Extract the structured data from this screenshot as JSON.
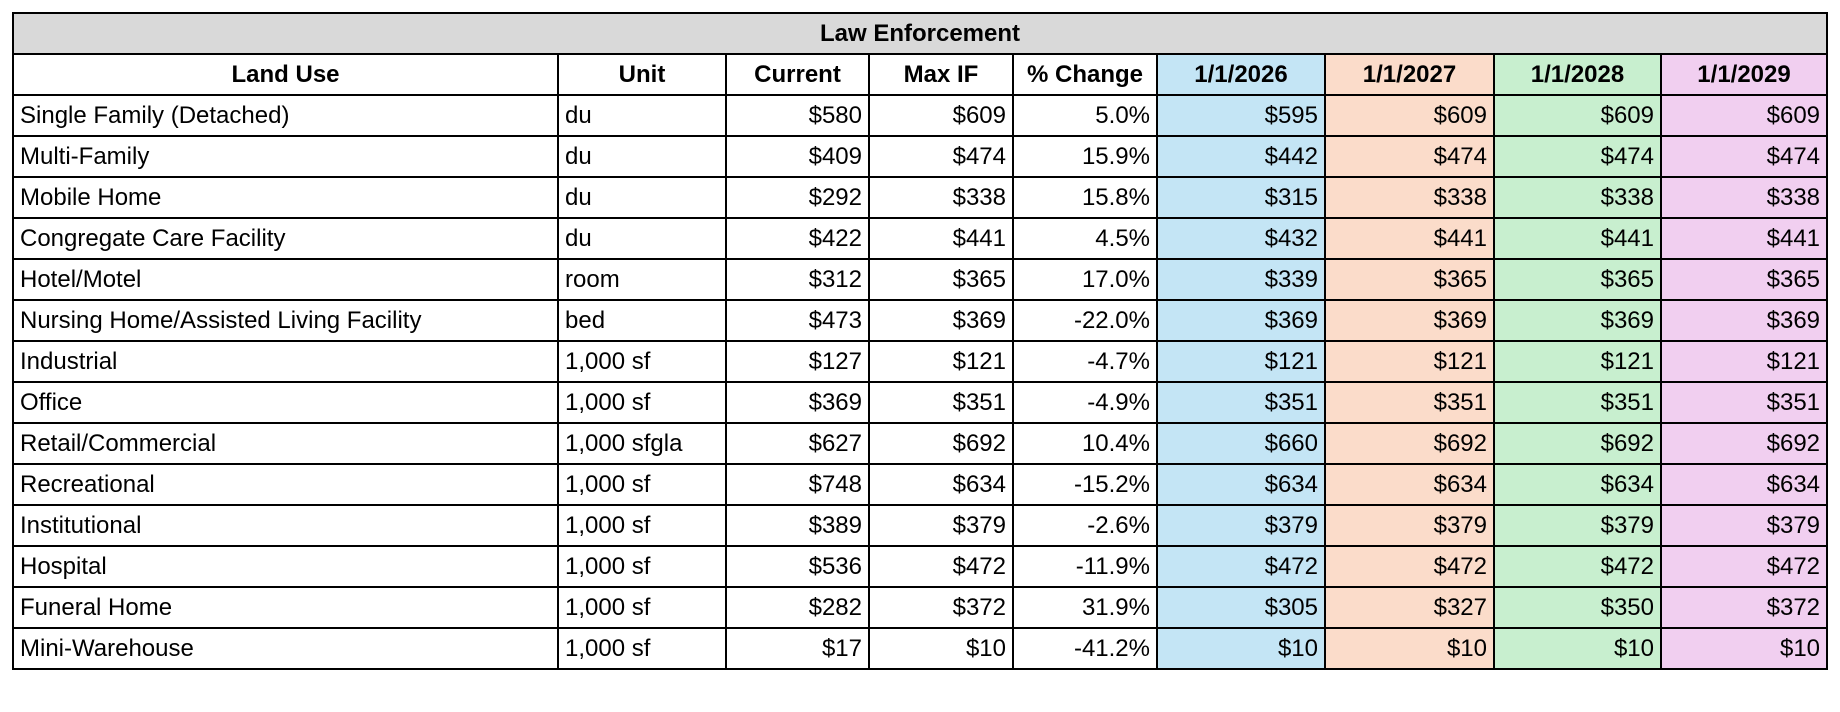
{
  "title": "Law Enforcement",
  "table": {
    "header": [
      "Land Use",
      "Unit",
      "Current",
      "Max IF",
      "% Change",
      "1/1/2026",
      "1/1/2027",
      "1/1/2028",
      "1/1/2029"
    ],
    "rows": [
      [
        "Single Family (Detached)",
        "du",
        "$580",
        "$609",
        "5.0%",
        "$595",
        "$609",
        "$609",
        "$609"
      ],
      [
        "Multi-Family",
        "du",
        "$409",
        "$474",
        "15.9%",
        "$442",
        "$474",
        "$474",
        "$474"
      ],
      [
        "Mobile Home",
        "du",
        "$292",
        "$338",
        "15.8%",
        "$315",
        "$338",
        "$338",
        "$338"
      ],
      [
        "Congregate Care Facility",
        "du",
        "$422",
        "$441",
        "4.5%",
        "$432",
        "$441",
        "$441",
        "$441"
      ],
      [
        "Hotel/Motel",
        "room",
        "$312",
        "$365",
        "17.0%",
        "$339",
        "$365",
        "$365",
        "$365"
      ],
      [
        "Nursing Home/Assisted Living Facility",
        "bed",
        "$473",
        "$369",
        "-22.0%",
        "$369",
        "$369",
        "$369",
        "$369"
      ],
      [
        "Industrial",
        "1,000 sf",
        "$127",
        "$121",
        "-4.7%",
        "$121",
        "$121",
        "$121",
        "$121"
      ],
      [
        "Office",
        "1,000 sf",
        "$369",
        "$351",
        "-4.9%",
        "$351",
        "$351",
        "$351",
        "$351"
      ],
      [
        "Retail/Commercial",
        "1,000 sfgla",
        "$627",
        "$692",
        "10.4%",
        "$660",
        "$692",
        "$692",
        "$692"
      ],
      [
        "Recreational",
        "1,000 sf",
        "$748",
        "$634",
        "-15.2%",
        "$634",
        "$634",
        "$634",
        "$634"
      ],
      [
        "Institutional",
        "1,000 sf",
        "$389",
        "$379",
        "-2.6%",
        "$379",
        "$379",
        "$379",
        "$379"
      ],
      [
        "Hospital",
        "1,000 sf",
        "$536",
        "$472",
        "-11.9%",
        "$472",
        "$472",
        "$472",
        "$472"
      ],
      [
        "Funeral Home",
        "1,000 sf",
        "$282",
        "$372",
        "31.9%",
        "$305",
        "$327",
        "$350",
        "$372"
      ],
      [
        "Mini-Warehouse",
        "1,000 sf",
        "$17",
        "$10",
        "-41.2%",
        "$10",
        "$10",
        "$10",
        "$10"
      ]
    ]
  }
}
